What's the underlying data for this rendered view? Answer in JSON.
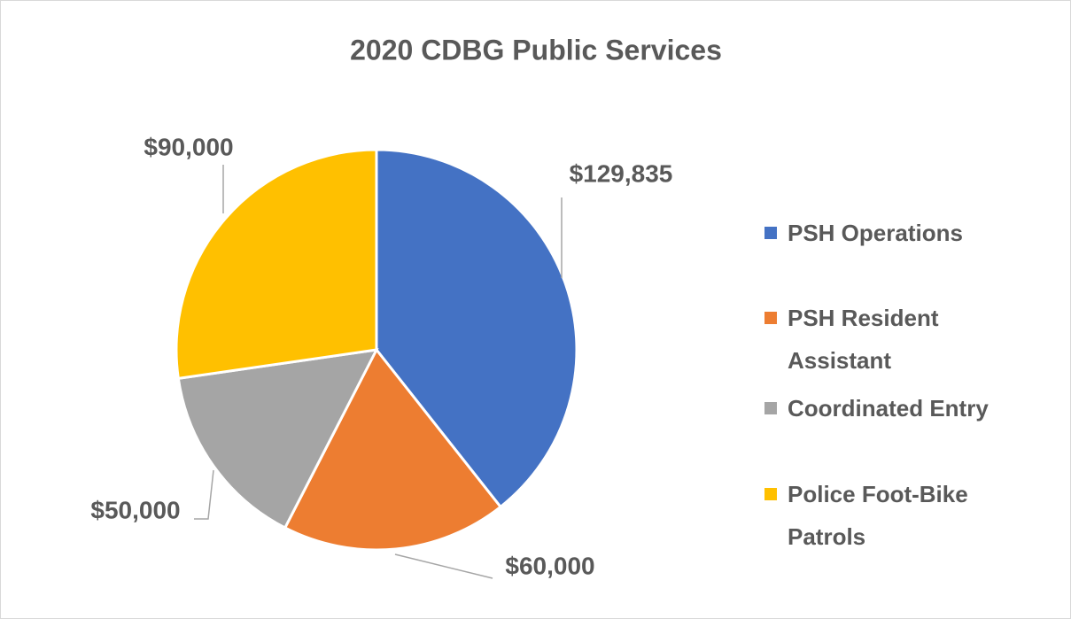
{
  "chart_data": {
    "type": "pie",
    "title": "2020 CDBG Public Services",
    "categories": [
      "PSH Operations",
      "PSH Resident Assistant",
      "Coordinated Entry",
      "Police Foot-Bike Patrols"
    ],
    "values": [
      129835,
      60000,
      50000,
      90000
    ],
    "value_labels": [
      "$129,835",
      "$60,000",
      "$50,000",
      "$90,000"
    ],
    "colors": [
      "#4472c4",
      "#ed7d31",
      "#a5a5a5",
      "#ffc000"
    ],
    "legend": "right"
  }
}
